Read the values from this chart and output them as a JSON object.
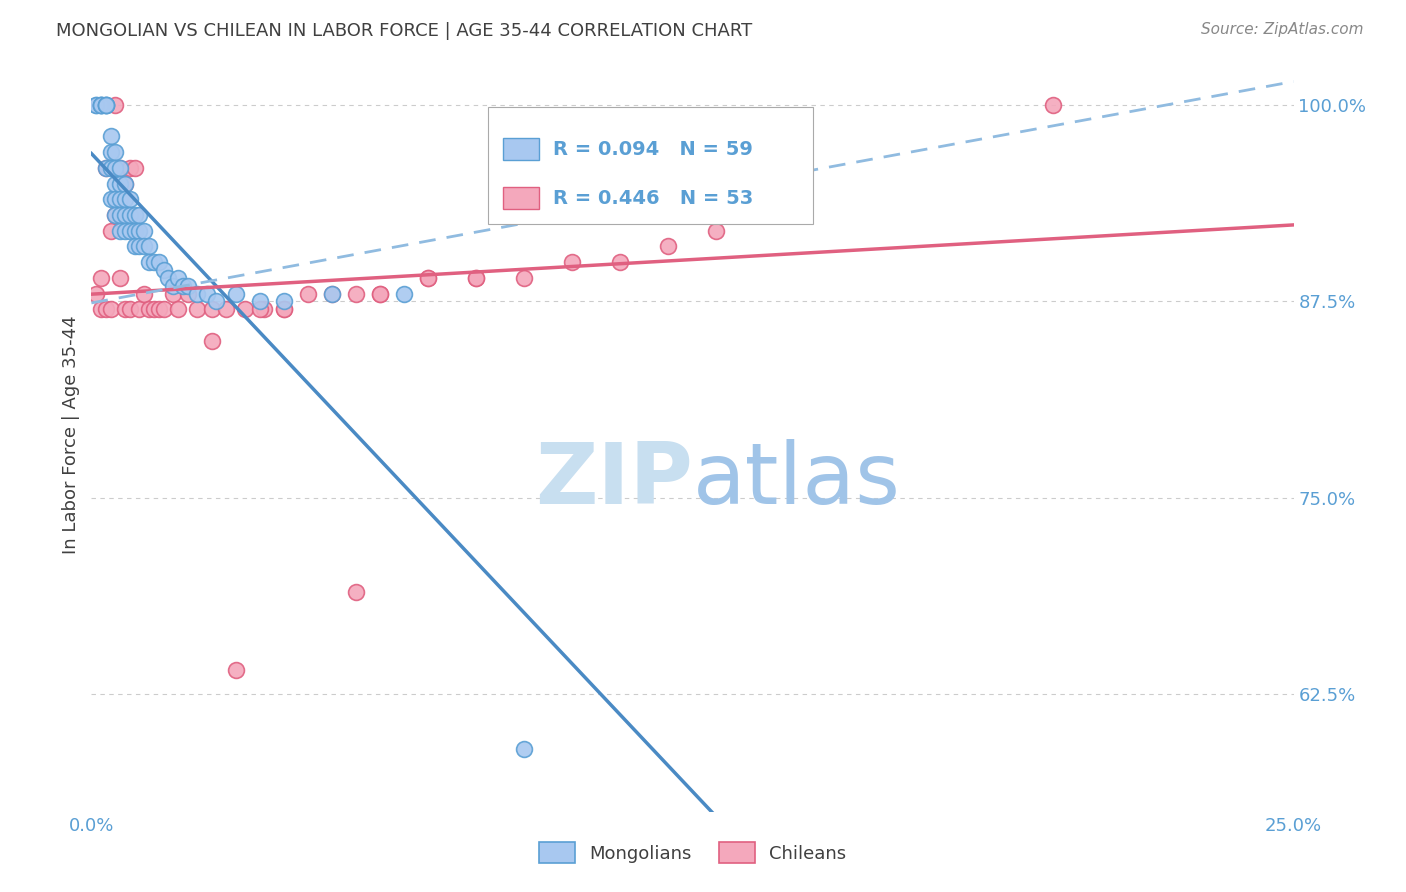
{
  "title": "MONGOLIAN VS CHILEAN IN LABOR FORCE | AGE 35-44 CORRELATION CHART",
  "source": "Source: ZipAtlas.com",
  "ylabel": "In Labor Force | Age 35-44",
  "xlim": [
    0.0,
    0.25
  ],
  "ylim": [
    0.55,
    1.03
  ],
  "yticks": [
    0.625,
    0.75,
    0.875,
    1.0
  ],
  "ytick_labels": [
    "62.5%",
    "75.0%",
    "87.5%",
    "100.0%"
  ],
  "xtick_labels": [
    "0.0%",
    "25.0%"
  ],
  "xtick_positions": [
    0.0,
    0.25
  ],
  "mongolian_color": "#A8C8F0",
  "chilean_color": "#F4A8BC",
  "mongolian_edge_color": "#5A9FD4",
  "chilean_edge_color": "#E06080",
  "mongolian_line_color": "#4A8AC4",
  "chilean_line_color": "#E06080",
  "dashed_line_color": "#90BBE0",
  "R_mongolian": 0.094,
  "N_mongolian": 59,
  "R_chilean": 0.446,
  "N_chilean": 53,
  "legend_label_mongolian": "Mongolians",
  "legend_label_chilean": "Chileans",
  "background_color": "#FFFFFF",
  "watermark_zip": "ZIP",
  "watermark_atlas": "atlas",
  "watermark_color_zip": "#C8DFF0",
  "watermark_color_atlas": "#A0C4E8",
  "grid_color": "#CCCCCC",
  "tick_color": "#5A9FD4",
  "title_color": "#404040",
  "source_color": "#888888",
  "ylabel_color": "#404040",
  "mongolian_x": [
    0.001,
    0.001,
    0.002,
    0.002,
    0.002,
    0.002,
    0.003,
    0.003,
    0.003,
    0.003,
    0.003,
    0.004,
    0.004,
    0.004,
    0.004,
    0.005,
    0.005,
    0.005,
    0.005,
    0.005,
    0.006,
    0.006,
    0.006,
    0.006,
    0.006,
    0.007,
    0.007,
    0.007,
    0.007,
    0.008,
    0.008,
    0.008,
    0.009,
    0.009,
    0.009,
    0.01,
    0.01,
    0.01,
    0.011,
    0.011,
    0.012,
    0.012,
    0.013,
    0.014,
    0.015,
    0.016,
    0.017,
    0.018,
    0.019,
    0.02,
    0.022,
    0.024,
    0.026,
    0.03,
    0.035,
    0.04,
    0.05,
    0.065,
    0.09
  ],
  "mongolian_y": [
    1.0,
    1.0,
    1.0,
    1.0,
    1.0,
    1.0,
    1.0,
    1.0,
    1.0,
    1.0,
    0.96,
    0.98,
    0.97,
    0.96,
    0.94,
    0.97,
    0.96,
    0.95,
    0.94,
    0.93,
    0.96,
    0.95,
    0.94,
    0.93,
    0.92,
    0.95,
    0.94,
    0.93,
    0.92,
    0.94,
    0.93,
    0.92,
    0.93,
    0.92,
    0.91,
    0.93,
    0.92,
    0.91,
    0.92,
    0.91,
    0.91,
    0.9,
    0.9,
    0.9,
    0.895,
    0.89,
    0.885,
    0.89,
    0.885,
    0.885,
    0.88,
    0.88,
    0.875,
    0.88,
    0.875,
    0.875,
    0.88,
    0.88,
    0.59
  ],
  "chilean_x": [
    0.001,
    0.002,
    0.002,
    0.003,
    0.003,
    0.004,
    0.004,
    0.005,
    0.005,
    0.006,
    0.006,
    0.007,
    0.007,
    0.008,
    0.008,
    0.009,
    0.009,
    0.01,
    0.011,
    0.012,
    0.013,
    0.014,
    0.015,
    0.017,
    0.018,
    0.02,
    0.022,
    0.025,
    0.028,
    0.032,
    0.036,
    0.04,
    0.045,
    0.05,
    0.055,
    0.06,
    0.07,
    0.08,
    0.09,
    0.1,
    0.11,
    0.12,
    0.13,
    0.145,
    0.055,
    0.035,
    0.025,
    0.04,
    0.06,
    0.08,
    0.03,
    0.07,
    0.2
  ],
  "chilean_y": [
    0.88,
    0.89,
    0.87,
    0.96,
    0.87,
    0.92,
    0.87,
    1.0,
    0.93,
    0.96,
    0.89,
    0.95,
    0.87,
    0.96,
    0.87,
    0.96,
    0.92,
    0.87,
    0.88,
    0.87,
    0.87,
    0.87,
    0.87,
    0.88,
    0.87,
    0.88,
    0.87,
    0.87,
    0.87,
    0.87,
    0.87,
    0.87,
    0.88,
    0.88,
    0.88,
    0.88,
    0.89,
    0.89,
    0.89,
    0.9,
    0.9,
    0.91,
    0.92,
    0.93,
    0.69,
    0.87,
    0.85,
    0.87,
    0.88,
    0.89,
    0.64,
    0.89,
    1.0
  ]
}
